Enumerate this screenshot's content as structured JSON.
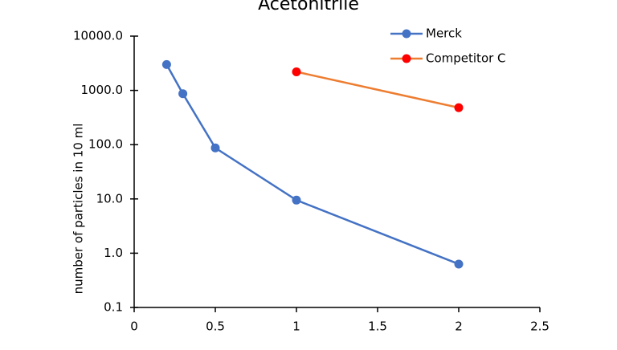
{
  "chart_data": {
    "type": "line",
    "title": "Acetonitrile",
    "ylabel": "number of particles in 10 ml",
    "xlim": [
      0,
      2.5
    ],
    "xticks": [
      0,
      0.5,
      1,
      1.5,
      2,
      2.5
    ],
    "ylim": [
      0.1,
      10000
    ],
    "log_y": true,
    "yticks": [
      {
        "value": 0.1,
        "label": "0.1"
      },
      {
        "value": 1,
        "label": "1.0"
      },
      {
        "value": 10,
        "label": "10.0"
      },
      {
        "value": 100,
        "label": "100.0"
      },
      {
        "value": 1000,
        "label": "1000.0"
      },
      {
        "value": 10000,
        "label": "10000.0"
      }
    ],
    "legend": "upper right",
    "series": [
      {
        "name": "Merck",
        "color": "#4472c4",
        "marker_color": "#4472c4",
        "x": [
          0.2,
          0.3,
          0.5,
          1,
          2
        ],
        "values": [
          3000,
          870,
          87,
          9.5,
          0.63
        ]
      },
      {
        "name": "Competitor C",
        "color": "#ed7d31",
        "marker_color": "#ff0000",
        "x": [
          1,
          2
        ],
        "values": [
          2200,
          480
        ]
      }
    ]
  }
}
